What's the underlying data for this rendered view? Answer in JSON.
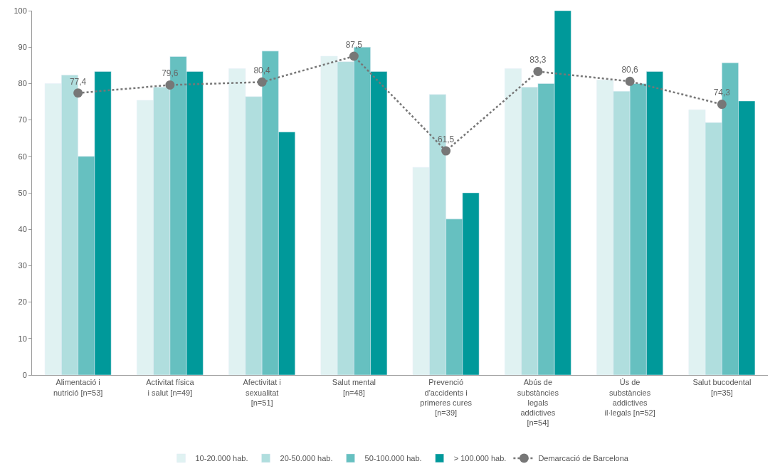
{
  "chart_data": {
    "type": "bar",
    "categories": [
      "Alimentació i nutrició [n=53]",
      "Activitat física i salut [n=49]",
      "Afectivitat i sexualitat [n=51]",
      "Salut mental [n=48]",
      "Prevenció d'accidents i primeres cures [n=39]",
      "Abús de substàncies legals addictives [n=54]",
      "Ús de substàncies addictives il·legals [n=52]",
      "Salut bucodental [n=35]"
    ],
    "series": [
      {
        "name": "10-20.000 hab.",
        "color": "#e0f2f2",
        "values": [
          80,
          75.4,
          84.1,
          87.5,
          57,
          84.1,
          81,
          72.8
        ]
      },
      {
        "name": "20-50.000 hab.",
        "color": "#b0dede",
        "values": [
          82.3,
          79,
          76.4,
          86,
          77,
          79,
          77.9,
          69.3
        ]
      },
      {
        "name": "50-100.000 hab.",
        "color": "#66c0c0",
        "values": [
          60,
          87.4,
          88.9,
          90,
          42.8,
          80,
          80,
          85.7
        ]
      },
      {
        "name": "> 100.000 hab.",
        "color": "#00999a",
        "values": [
          83.3,
          83.3,
          66.7,
          83.3,
          50,
          100,
          83.3,
          75.2
        ]
      },
      {
        "name": "Demarcació de Barcelona",
        "type": "line",
        "color": "#777777",
        "marker": "circle",
        "line_style": "dotted",
        "values": [
          77.4,
          79.6,
          80.4,
          87.5,
          61.5,
          83.3,
          80.6,
          74.3
        ],
        "value_labels": [
          "77,4",
          "79,6",
          "80,4",
          "87,5",
          "61,5",
          "83,3",
          "80,6",
          "74,3"
        ]
      }
    ],
    "ylim": [
      0,
      100
    ],
    "yticks": [
      0,
      10,
      20,
      30,
      40,
      50,
      60,
      70,
      80,
      90,
      100
    ],
    "grid": false,
    "legend": "bottom"
  }
}
